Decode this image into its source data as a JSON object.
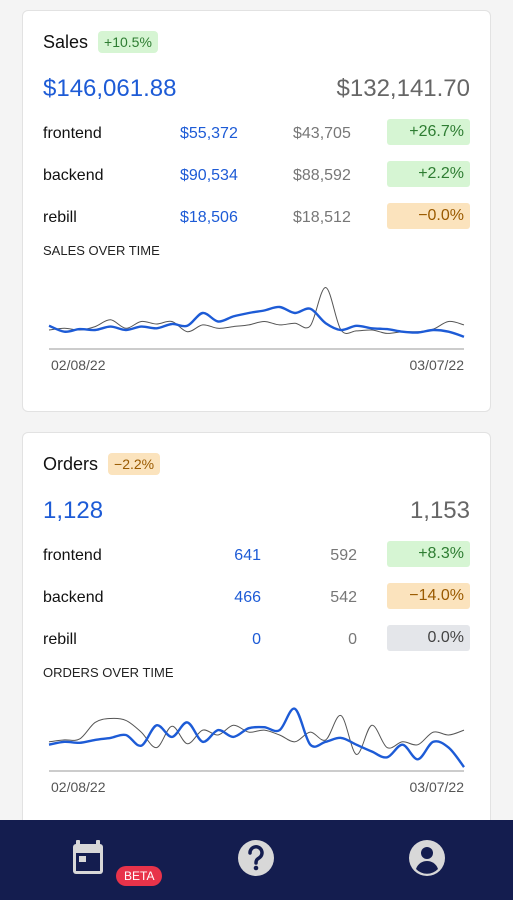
{
  "sales": {
    "title": "Sales",
    "badge": "+10.5%",
    "current_total": "$146,061.88",
    "previous_total": "$132,141.70",
    "rows": [
      {
        "label": "frontend",
        "current": "$55,372",
        "previous": "$43,705",
        "change": "+26.7%",
        "status": "green"
      },
      {
        "label": "backend",
        "current": "$90,534",
        "previous": "$88,592",
        "change": "+2.2%",
        "status": "green"
      },
      {
        "label": "rebill",
        "current": "$18,506",
        "previous": "$18,512",
        "change": "−0.0%",
        "status": "amber"
      }
    ],
    "chart_title": "SALES OVER TIME",
    "x_start": "02/08/22",
    "x_end": "03/07/22"
  },
  "orders": {
    "title": "Orders",
    "badge": "−2.2%",
    "current_total": "1,128",
    "previous_total": "1,153",
    "rows": [
      {
        "label": "frontend",
        "current": "641",
        "previous": "592",
        "change": "+8.3%",
        "status": "green"
      },
      {
        "label": "backend",
        "current": "466",
        "previous": "542",
        "change": "−14.0%",
        "status": "amber"
      },
      {
        "label": "rebill",
        "current": "0",
        "previous": "0",
        "change": "0.0%",
        "status": "grey"
      }
    ],
    "chart_title": "ORDERS OVER TIME",
    "x_start": "02/08/22",
    "x_end": "03/07/22"
  },
  "nav": {
    "beta_label": "BETA",
    "items": [
      "calendar-icon",
      "help-icon",
      "account-icon"
    ]
  },
  "colors": {
    "current": "#1d5bd6",
    "previous": "#555555",
    "nav_bg": "#141d4f",
    "beta": "#e8334a"
  },
  "chart_data": [
    {
      "type": "line",
      "title": "SALES OVER TIME",
      "x": [
        "02/08/22",
        "02/09/22",
        "02/10/22",
        "02/11/22",
        "02/12/22",
        "02/13/22",
        "02/14/22",
        "02/15/22",
        "02/16/22",
        "02/17/22",
        "02/18/22",
        "02/19/22",
        "02/20/22",
        "02/21/22",
        "02/22/22",
        "02/23/22",
        "02/24/22",
        "02/25/22",
        "02/26/22",
        "02/27/22",
        "02/28/22",
        "03/01/22",
        "03/02/22",
        "03/03/22",
        "03/04/22",
        "03/05/22",
        "03/06/22",
        "03/07/22"
      ],
      "series": [
        {
          "name": "current",
          "values": [
            25,
            18,
            21,
            20,
            24,
            20,
            24,
            22,
            27,
            25,
            40,
            30,
            36,
            40,
            43,
            47,
            40,
            45,
            28,
            20,
            25,
            22,
            21,
            18,
            17,
            20,
            18,
            12
          ]
        },
        {
          "name": "previous",
          "values": [
            20,
            22,
            20,
            24,
            32,
            22,
            30,
            27,
            30,
            18,
            26,
            22,
            24,
            26,
            30,
            26,
            28,
            25,
            70,
            20,
            19,
            20,
            16,
            18,
            18,
            21,
            30,
            26
          ]
        }
      ],
      "ylim": [
        0,
        80
      ]
    },
    {
      "type": "line",
      "title": "ORDERS OVER TIME",
      "x": [
        "02/08/22",
        "02/09/22",
        "02/10/22",
        "02/11/22",
        "02/12/22",
        "02/13/22",
        "02/14/22",
        "02/15/22",
        "02/16/22",
        "02/17/22",
        "02/18/22",
        "02/19/22",
        "02/20/22",
        "02/21/22",
        "02/22/22",
        "02/23/22",
        "02/24/22",
        "02/25/22",
        "02/26/22",
        "02/27/22",
        "02/28/22",
        "03/01/22",
        "03/02/22",
        "03/03/22",
        "03/04/22",
        "03/05/22",
        "03/06/22",
        "03/07/22"
      ],
      "series": [
        {
          "name": "current",
          "values": [
            25,
            28,
            27,
            30,
            32,
            35,
            24,
            45,
            33,
            48,
            28,
            40,
            33,
            42,
            43,
            40,
            62,
            25,
            28,
            32,
            25,
            18,
            12,
            25,
            10,
            28,
            22,
            2
          ]
        },
        {
          "name": "previous",
          "values": [
            28,
            30,
            31,
            48,
            52,
            50,
            38,
            22,
            44,
            26,
            40,
            35,
            45,
            38,
            40,
            35,
            28,
            38,
            30,
            55,
            15,
            45,
            22,
            28,
            25,
            38,
            35,
            40
          ]
        }
      ],
      "ylim": [
        0,
        70
      ]
    }
  ]
}
